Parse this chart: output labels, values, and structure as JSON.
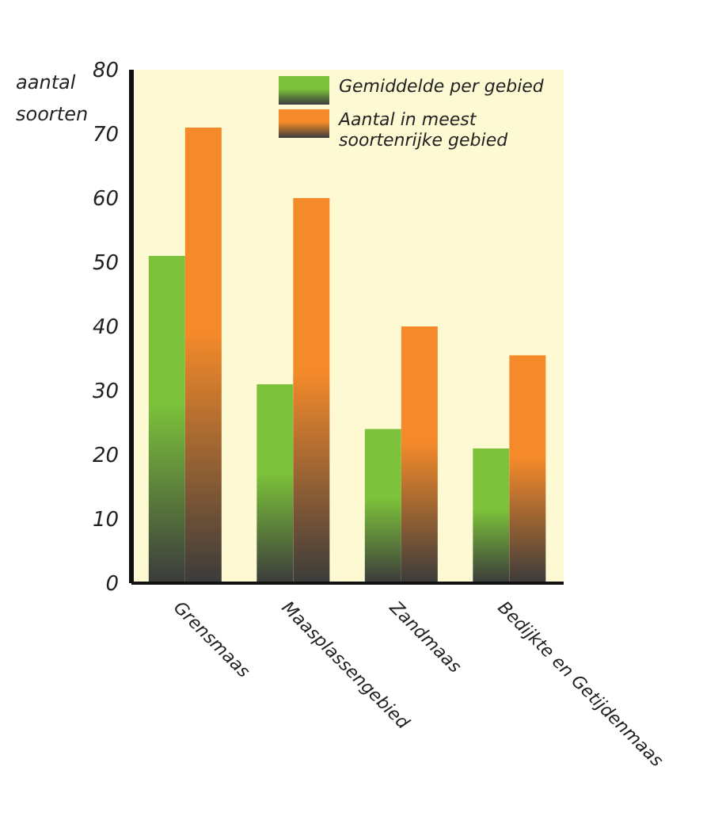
{
  "chart_data": {
    "type": "bar",
    "ylabel": "aantal soorten",
    "categories": [
      "Grensmaas",
      "Maasplassengebied",
      "Zandmaas",
      "Bedijkte en Getijdenmaas"
    ],
    "series": [
      {
        "name": "Gemiddelde per gebied",
        "color": "#7cc23a",
        "values": [
          51,
          31,
          24,
          21
        ]
      },
      {
        "name": "Aantal in meest soortenrijke gebied",
        "color": "#f58a2a",
        "values": [
          71,
          60,
          40,
          35.5
        ]
      }
    ],
    "ylim": [
      0,
      80
    ],
    "yticks": [
      0,
      10,
      20,
      30,
      40,
      50,
      60,
      70,
      80
    ],
    "grid": false,
    "legend": "top right"
  }
}
